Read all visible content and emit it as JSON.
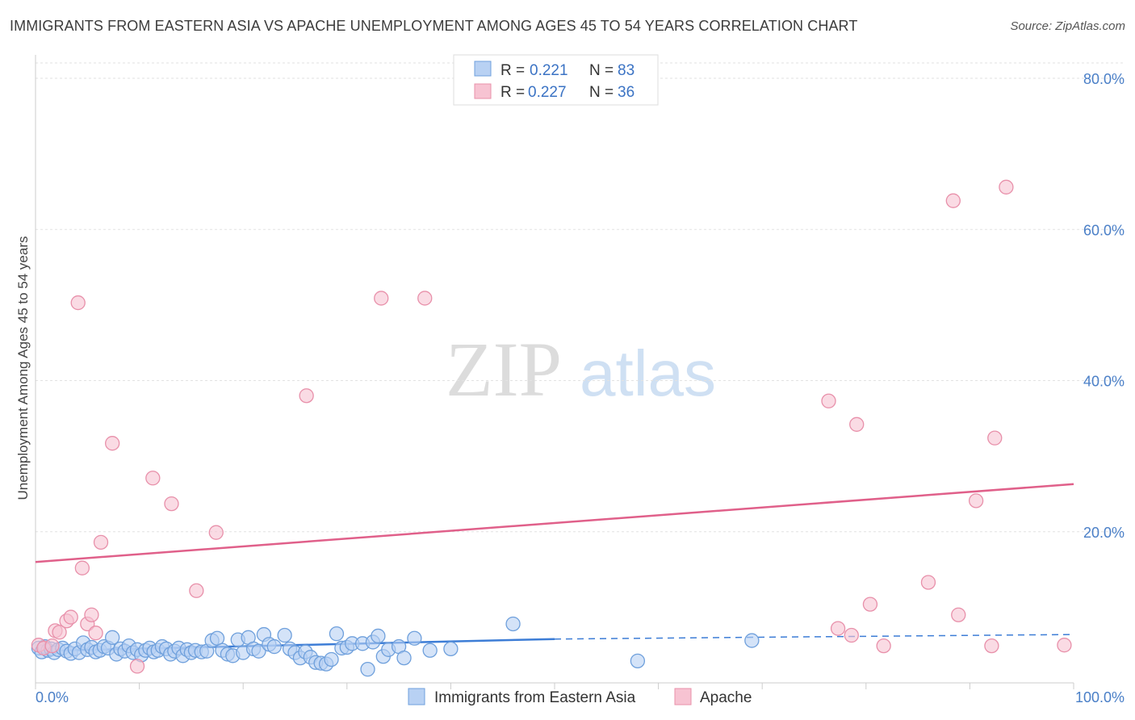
{
  "title": "IMMIGRANTS FROM EASTERN ASIA VS APACHE UNEMPLOYMENT AMONG AGES 45 TO 54 YEARS CORRELATION CHART",
  "source": "Source: ZipAtlas.com",
  "watermark": {
    "zip": "ZIP",
    "atlas": "atlas"
  },
  "legend": {
    "rows": [
      {
        "r_label": "R =",
        "r_value": "0.221",
        "n_label": "N =",
        "n_value": "83"
      },
      {
        "r_label": "R =",
        "r_value": "0.227",
        "n_label": "N =",
        "n_value": "36"
      }
    ]
  },
  "chart_data": {
    "type": "scatter",
    "title": "IMMIGRANTS FROM EASTERN ASIA VS APACHE UNEMPLOYMENT AMONG AGES 45 TO 54 YEARS CORRELATION CHART",
    "xlabel": "",
    "ylabel": "Unemployment Among Ages 45 to 54 years",
    "xlim": [
      0,
      100
    ],
    "ylim": [
      0,
      85
    ],
    "x_ticks": [
      {
        "value": 0,
        "label": "0.0%"
      },
      {
        "value": 100,
        "label": "100.0%"
      }
    ],
    "y_ticks": [
      {
        "value": 20,
        "label": "20.0%"
      },
      {
        "value": 40,
        "label": "40.0%"
      },
      {
        "value": 60,
        "label": "60.0%"
      },
      {
        "value": 80,
        "label": "80.0%"
      }
    ],
    "series": [
      {
        "name": "Immigrants from Eastern Asia",
        "color": "#6fa0dc",
        "fill": "#b8d1f3",
        "trend": {
          "x0": 0,
          "y0": 4.2,
          "x1": 50,
          "y1": 5.8,
          "dashed_to_x": 100,
          "dashed_to_y": 6.4,
          "color": "#3d7dd6"
        },
        "points": [
          [
            0.3,
            4.6
          ],
          [
            0.6,
            4.1
          ],
          [
            0.9,
            4.8
          ],
          [
            1.2,
            4.3
          ],
          [
            1.5,
            4.5
          ],
          [
            1.8,
            4.0
          ],
          [
            2.2,
            4.4
          ],
          [
            2.6,
            4.6
          ],
          [
            3.0,
            4.2
          ],
          [
            3.4,
            3.9
          ],
          [
            3.8,
            4.5
          ],
          [
            4.2,
            4.0
          ],
          [
            4.6,
            5.3
          ],
          [
            5.0,
            4.4
          ],
          [
            5.4,
            4.7
          ],
          [
            5.8,
            4.1
          ],
          [
            6.2,
            4.3
          ],
          [
            6.6,
            4.8
          ],
          [
            7.0,
            4.6
          ],
          [
            7.4,
            6.0
          ],
          [
            7.8,
            3.8
          ],
          [
            8.2,
            4.5
          ],
          [
            8.6,
            4.2
          ],
          [
            9.0,
            4.9
          ],
          [
            9.4,
            4.0
          ],
          [
            9.8,
            4.4
          ],
          [
            10.2,
            3.7
          ],
          [
            10.6,
            4.3
          ],
          [
            11.0,
            4.6
          ],
          [
            11.4,
            4.1
          ],
          [
            11.8,
            4.3
          ],
          [
            12.2,
            4.8
          ],
          [
            12.6,
            4.5
          ],
          [
            13.0,
            3.8
          ],
          [
            13.4,
            4.2
          ],
          [
            13.8,
            4.6
          ],
          [
            14.2,
            3.6
          ],
          [
            14.6,
            4.4
          ],
          [
            15.0,
            4.0
          ],
          [
            15.4,
            4.3
          ],
          [
            16.0,
            4.1
          ],
          [
            16.5,
            4.2
          ],
          [
            17.0,
            5.6
          ],
          [
            17.5,
            5.9
          ],
          [
            18.0,
            4.3
          ],
          [
            18.5,
            3.8
          ],
          [
            19.0,
            3.6
          ],
          [
            19.5,
            5.7
          ],
          [
            20.0,
            4.0
          ],
          [
            20.5,
            6.0
          ],
          [
            21.0,
            4.5
          ],
          [
            21.5,
            4.2
          ],
          [
            22.0,
            6.4
          ],
          [
            22.5,
            5.1
          ],
          [
            23.0,
            4.8
          ],
          [
            24.0,
            6.3
          ],
          [
            24.5,
            4.5
          ],
          [
            25.0,
            4.0
          ],
          [
            25.5,
            3.3
          ],
          [
            26.0,
            4.1
          ],
          [
            26.5,
            3.4
          ],
          [
            27.0,
            2.7
          ],
          [
            27.5,
            2.6
          ],
          [
            28.0,
            2.5
          ],
          [
            28.5,
            3.1
          ],
          [
            29.0,
            6.5
          ],
          [
            29.5,
            4.6
          ],
          [
            30.0,
            4.7
          ],
          [
            30.5,
            5.2
          ],
          [
            31.5,
            5.2
          ],
          [
            32.0,
            1.8
          ],
          [
            32.5,
            5.4
          ],
          [
            33.0,
            6.2
          ],
          [
            33.5,
            3.5
          ],
          [
            34.0,
            4.4
          ],
          [
            35.0,
            4.8
          ],
          [
            35.5,
            3.3
          ],
          [
            36.5,
            5.9
          ],
          [
            38.0,
            4.3
          ],
          [
            40.0,
            4.5
          ],
          [
            46.0,
            7.8
          ],
          [
            58.0,
            2.9
          ],
          [
            69.0,
            5.6
          ]
        ]
      },
      {
        "name": "Apache",
        "color": "#e890aa",
        "fill": "#f7c3d2",
        "trend": {
          "x0": 0,
          "y0": 16.0,
          "x1": 100,
          "y1": 26.3,
          "color": "#e0608a"
        },
        "points": [
          [
            0.3,
            5.0
          ],
          [
            0.8,
            4.6
          ],
          [
            1.6,
            4.9
          ],
          [
            1.9,
            6.9
          ],
          [
            2.3,
            6.7
          ],
          [
            3.0,
            8.2
          ],
          [
            3.4,
            8.7
          ],
          [
            4.1,
            50.3
          ],
          [
            4.5,
            15.2
          ],
          [
            5.0,
            7.8
          ],
          [
            5.4,
            9.0
          ],
          [
            5.8,
            6.6
          ],
          [
            6.3,
            18.6
          ],
          [
            7.4,
            31.7
          ],
          [
            9.8,
            2.2
          ],
          [
            11.3,
            27.1
          ],
          [
            13.1,
            23.7
          ],
          [
            15.5,
            12.2
          ],
          [
            17.4,
            19.9
          ],
          [
            26.1,
            38.0
          ],
          [
            33.3,
            50.9
          ],
          [
            37.5,
            50.9
          ],
          [
            76.4,
            37.3
          ],
          [
            77.3,
            7.2
          ],
          [
            78.6,
            6.3
          ],
          [
            79.1,
            34.2
          ],
          [
            80.4,
            10.4
          ],
          [
            81.7,
            4.9
          ],
          [
            86.0,
            13.3
          ],
          [
            88.4,
            63.8
          ],
          [
            88.9,
            9.0
          ],
          [
            90.6,
            24.1
          ],
          [
            92.1,
            4.9
          ],
          [
            92.4,
            32.4
          ],
          [
            93.5,
            65.6
          ],
          [
            99.1,
            5.0
          ]
        ]
      }
    ]
  }
}
